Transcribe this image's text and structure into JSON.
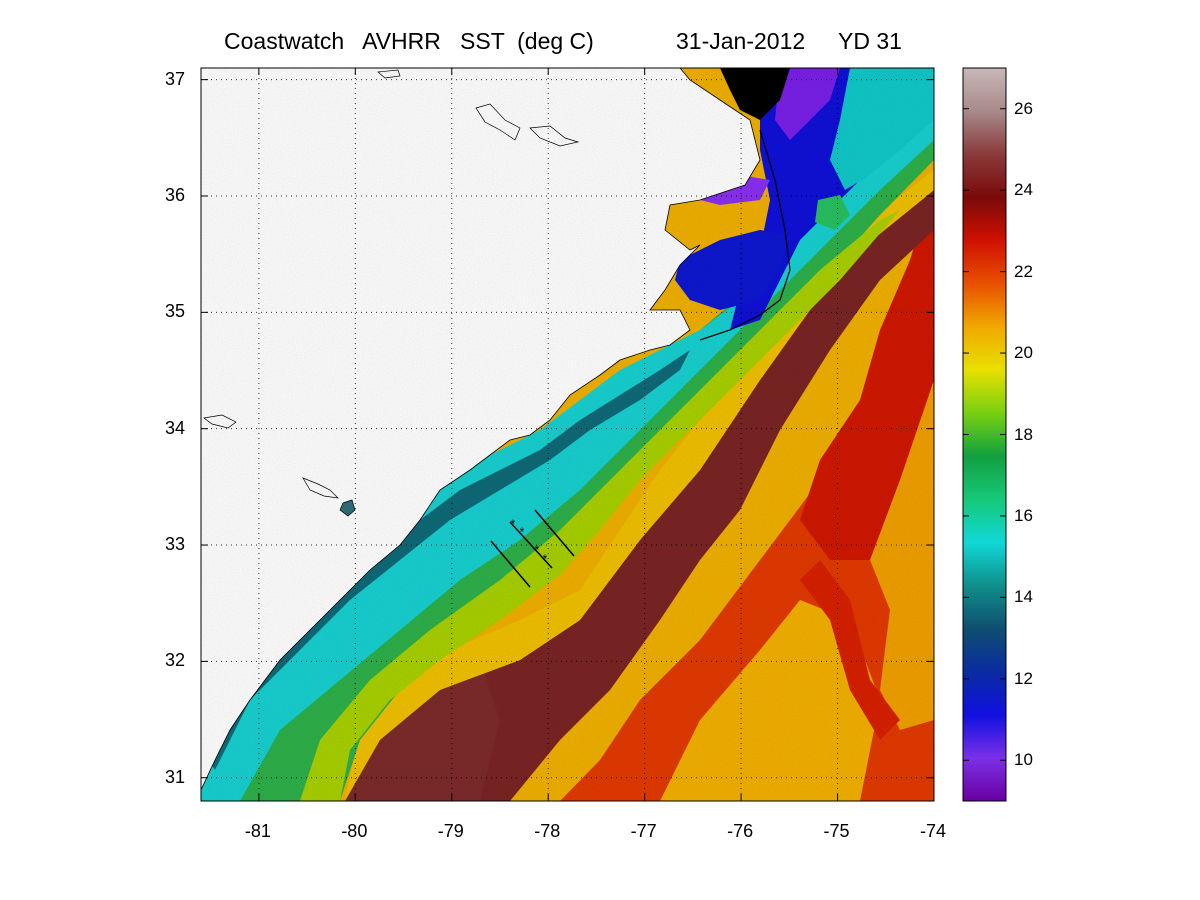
{
  "title": {
    "main": "Coastwatch   AVHRR   SST  (deg C)",
    "date": "31-Jan-2012",
    "yearday": "YD 31"
  },
  "map_axes": {
    "lon_ticks": [
      "-81",
      "-80",
      "-79",
      "-78",
      "-77",
      "-76",
      "-75",
      "-74"
    ],
    "lat_ticks": [
      "37",
      "36",
      "35",
      "34",
      "33",
      "32",
      "31"
    ],
    "lon_range": [
      -81.6,
      -74
    ],
    "lat_range": [
      30.8,
      37.1
    ],
    "grid": "dotted"
  },
  "colorbar": {
    "ticks": [
      "26",
      "24",
      "22",
      "20",
      "18",
      "16",
      "14",
      "12",
      "10"
    ],
    "range": [
      9,
      27
    ],
    "colors": [
      "#6a00a0",
      "#7a30e8",
      "#1010e0",
      "#0a2ca0",
      "#0f4f70",
      "#0f8f8a",
      "#10d8d8",
      "#16c878",
      "#12a040",
      "#78d010",
      "#e8e000",
      "#f0a800",
      "#e85000",
      "#d01000",
      "#7a0a0a",
      "#8a3a3a",
      "#a88a8a",
      "#c8b8b8"
    ]
  },
  "sections": {
    "count_lines": 3,
    "markers": 4
  }
}
